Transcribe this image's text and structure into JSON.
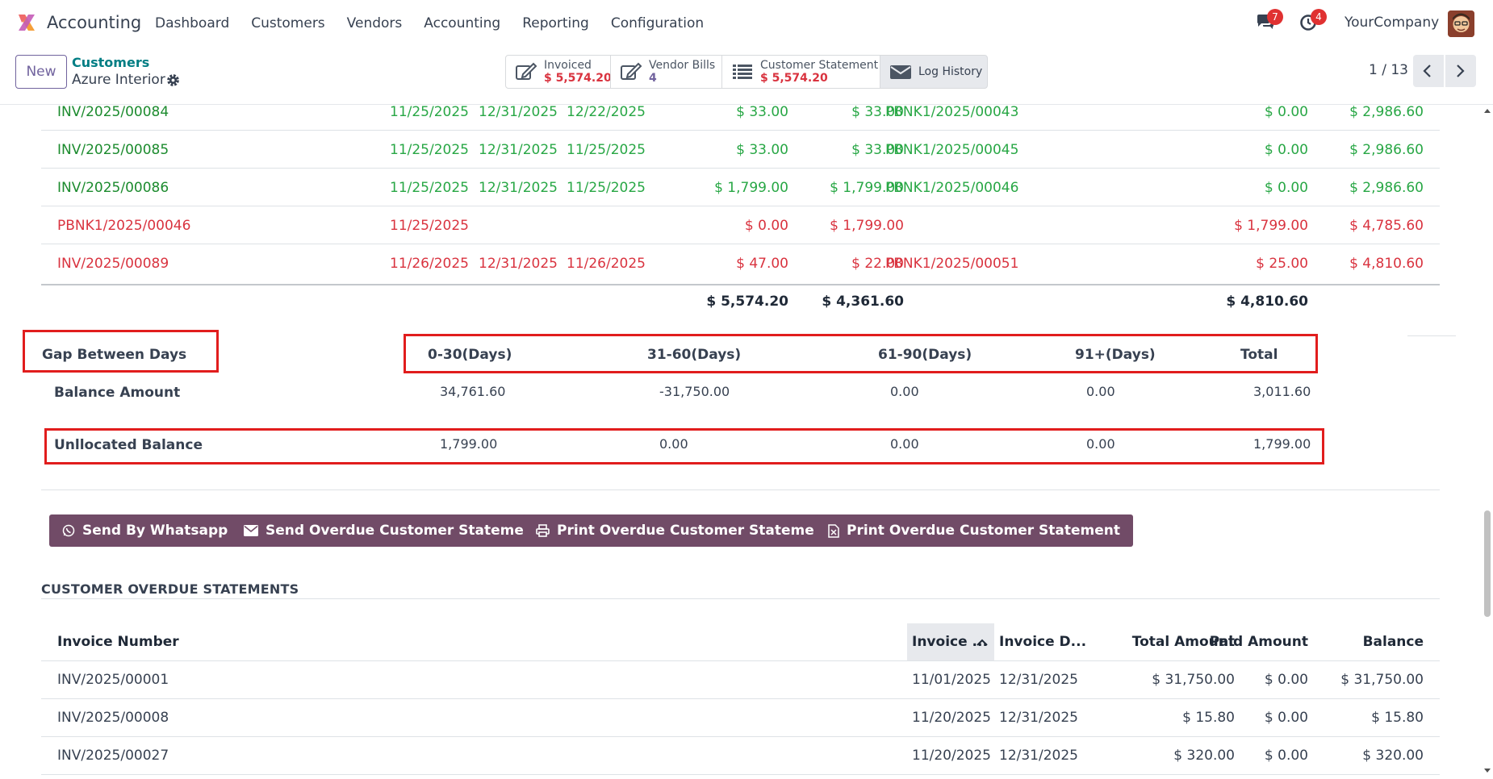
{
  "navbar": {
    "app_name": "Accounting",
    "menu": [
      "Dashboard",
      "Customers",
      "Vendors",
      "Accounting",
      "Reporting",
      "Configuration"
    ],
    "messages_count": "7",
    "activities_count": "4",
    "company": "YourCompany"
  },
  "control_panel": {
    "new_label": "New",
    "breadcrumb_parent": "Customers",
    "breadcrumb_current": "Azure Interior",
    "smart_buttons": {
      "invoiced_label": "Invoiced",
      "invoiced_value": "$ 5,574.20",
      "vendor_bills_label": "Vendor Bills",
      "vendor_bills_value": "4",
      "statement_label": "Customer Statement",
      "statement_value": "$ 5,574.20",
      "log_label": "Log History"
    },
    "pager": "1 / 13"
  },
  "statement_rows": [
    {
      "ref": "INV/2025/00084",
      "inv_date": "11/25/2025",
      "due_date": "12/31/2025",
      "pay_date": "12/22/2025",
      "total": "$ 33.00",
      "paid": "$ 33.00",
      "payment": "PBNK1/2025/00043",
      "balance": "$ 0.00",
      "cumulative": "$ 2,986.60",
      "status": "green"
    },
    {
      "ref": "INV/2025/00085",
      "inv_date": "11/25/2025",
      "due_date": "12/31/2025",
      "pay_date": "11/25/2025",
      "total": "$ 33.00",
      "paid": "$ 33.00",
      "payment": "PBNK1/2025/00045",
      "balance": "$ 0.00",
      "cumulative": "$ 2,986.60",
      "status": "green"
    },
    {
      "ref": "INV/2025/00086",
      "inv_date": "11/25/2025",
      "due_date": "12/31/2025",
      "pay_date": "11/25/2025",
      "total": "$ 1,799.00",
      "paid": "$ 1,799.00",
      "payment": "PBNK1/2025/00046",
      "balance": "$ 0.00",
      "cumulative": "$ 2,986.60",
      "status": "green"
    },
    {
      "ref": "PBNK1/2025/00046",
      "inv_date": "11/25/2025",
      "due_date": "",
      "pay_date": "",
      "total": "$ 0.00",
      "paid": "$ 1,799.00",
      "payment": "",
      "balance": "$ 1,799.00",
      "cumulative": "$ 4,785.60",
      "status": "red"
    },
    {
      "ref": "INV/2025/00089",
      "inv_date": "11/26/2025",
      "due_date": "12/31/2025",
      "pay_date": "11/26/2025",
      "total": "$ 47.00",
      "paid": "$ 22.00",
      "payment": "PBNK1/2025/00051",
      "balance": "$ 25.00",
      "cumulative": "$ 4,810.60",
      "status": "red"
    }
  ],
  "statement_totals": {
    "total": "$ 5,574.20",
    "paid": "$ 4,361.60",
    "balance": "$ 4,810.60"
  },
  "aging": {
    "label": "Gap Between Days",
    "headers": [
      "0-30(Days)",
      "31-60(Days)",
      "61-90(Days)",
      "91+(Days)",
      "Total"
    ],
    "balance_label": "Balance Amount",
    "balance_values": [
      "34,761.60",
      "-31,750.00",
      "0.00",
      "0.00",
      "3,011.60"
    ],
    "unallocated_label": "Unllocated Balance",
    "unallocated_values": [
      "1,799.00",
      "0.00",
      "0.00",
      "0.00",
      "1,799.00"
    ]
  },
  "actions": {
    "whatsapp": "Send By Whatsapp",
    "send_overdue": "Send Overdue Customer Statement",
    "print_overdue": "Print Overdue Customer Statement",
    "print_overdue_xls": "Print Overdue Customer Statement"
  },
  "overdue": {
    "title": "CUSTOMER OVERDUE STATEMENTS",
    "headers": {
      "number": "Invoice Number",
      "inv_date": "Invoice ...",
      "due_date": "Invoice D...",
      "total": "Total Amount",
      "paid": "Paid Amount",
      "balance": "Balance"
    },
    "rows": [
      {
        "number": "INV/2025/00001",
        "inv_date": "11/01/2025",
        "due_date": "12/31/2025",
        "total": "$ 31,750.00",
        "paid": "$ 0.00",
        "balance": "$ 31,750.00"
      },
      {
        "number": "INV/2025/00008",
        "inv_date": "11/20/2025",
        "due_date": "12/31/2025",
        "total": "$ 15.80",
        "paid": "$ 0.00",
        "balance": "$ 15.80"
      },
      {
        "number": "INV/2025/00027",
        "inv_date": "11/20/2025",
        "due_date": "12/31/2025",
        "total": "$ 320.00",
        "paid": "$ 0.00",
        "balance": "$ 320.00"
      }
    ]
  },
  "colors": {
    "brand": "#714b67",
    "paid": "#28a745",
    "overdue": "#d9333f",
    "highlight_box": "#e11d1d",
    "teal": "#017e84"
  }
}
